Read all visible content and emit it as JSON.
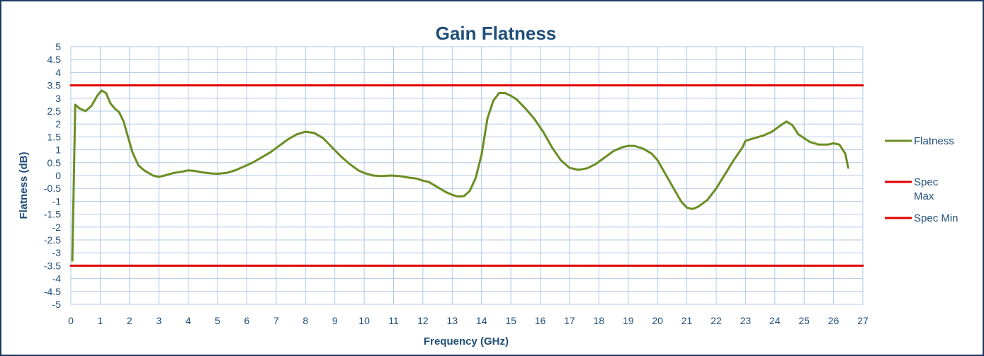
{
  "chart_data": {
    "type": "line",
    "title": "Gain Flatness",
    "xlabel": "Frequency (GHz)",
    "ylabel": "Flatness (dB)",
    "xlim": [
      0,
      27
    ],
    "ylim": [
      -5,
      5
    ],
    "x_ticks": [
      "0",
      "1",
      "2",
      "3",
      "4",
      "5",
      "6",
      "7",
      "8",
      "9",
      "10",
      "11",
      "12",
      "13",
      "14",
      "15",
      "16",
      "17",
      "18",
      "19",
      "20",
      "21",
      "22",
      "23",
      "24",
      "25",
      "26",
      "27"
    ],
    "y_ticks": [
      "5",
      "4.5",
      "4",
      "3.5",
      "3",
      "2.5",
      "2",
      "1.5",
      "1",
      "0.5",
      "0",
      "-0.5",
      "-1",
      "-1.5",
      "-2",
      "-2.5",
      "-3",
      "-3.5",
      "-4",
      "-4.5",
      "-5"
    ],
    "grid": true,
    "legend_position": "right",
    "series": [
      {
        "name": "Flatness",
        "color": "#6b8e23",
        "x": [
          0.05,
          0.15,
          0.3,
          0.5,
          0.7,
          0.9,
          1.05,
          1.2,
          1.35,
          1.5,
          1.65,
          1.8,
          1.95,
          2.1,
          2.3,
          2.5,
          2.8,
          3.0,
          3.2,
          3.5,
          3.8,
          4.0,
          4.2,
          4.5,
          4.8,
          5.0,
          5.3,
          5.6,
          5.9,
          6.2,
          6.5,
          6.8,
          7.1,
          7.4,
          7.7,
          8.0,
          8.3,
          8.6,
          8.9,
          9.2,
          9.5,
          9.8,
          10.0,
          10.3,
          10.6,
          10.9,
          11.2,
          11.5,
          11.8,
          12.0,
          12.2,
          12.5,
          12.8,
          13.0,
          13.2,
          13.4,
          13.6,
          13.8,
          14.0,
          14.2,
          14.4,
          14.6,
          14.8,
          15.0,
          15.2,
          15.5,
          15.8,
          16.1,
          16.4,
          16.7,
          17.0,
          17.3,
          17.6,
          17.9,
          18.2,
          18.5,
          18.8,
          19.0,
          19.2,
          19.5,
          19.8,
          20.0,
          20.2,
          20.5,
          20.8,
          21.0,
          21.2,
          21.4,
          21.7,
          22.0,
          22.3,
          22.6,
          22.9,
          23.0,
          23.3,
          23.6,
          23.9,
          24.2,
          24.4,
          24.6,
          24.8,
          25.0,
          25.2,
          25.5,
          25.8,
          26.0,
          26.2,
          26.4,
          26.5
        ],
        "values": [
          -3.3,
          2.75,
          2.6,
          2.5,
          2.7,
          3.1,
          3.3,
          3.2,
          2.8,
          2.6,
          2.45,
          2.1,
          1.5,
          0.9,
          0.4,
          0.2,
          0.0,
          -0.05,
          0.0,
          0.1,
          0.15,
          0.2,
          0.18,
          0.12,
          0.08,
          0.07,
          0.1,
          0.2,
          0.35,
          0.5,
          0.7,
          0.9,
          1.15,
          1.4,
          1.6,
          1.7,
          1.65,
          1.45,
          1.1,
          0.75,
          0.45,
          0.2,
          0.1,
          0.0,
          -0.02,
          0.0,
          -0.02,
          -0.08,
          -0.12,
          -0.2,
          -0.25,
          -0.45,
          -0.65,
          -0.75,
          -0.82,
          -0.8,
          -0.6,
          -0.1,
          0.8,
          2.2,
          2.9,
          3.2,
          3.2,
          3.1,
          2.95,
          2.6,
          2.2,
          1.7,
          1.1,
          0.6,
          0.3,
          0.22,
          0.28,
          0.45,
          0.7,
          0.95,
          1.1,
          1.15,
          1.15,
          1.05,
          0.85,
          0.6,
          0.2,
          -0.4,
          -1.0,
          -1.25,
          -1.3,
          -1.2,
          -0.95,
          -0.5,
          0.05,
          0.6,
          1.1,
          1.35,
          1.45,
          1.55,
          1.7,
          1.95,
          2.1,
          1.95,
          1.6,
          1.45,
          1.3,
          1.2,
          1.2,
          1.25,
          1.2,
          0.85,
          0.3
        ]
      },
      {
        "name": "Spec Max",
        "color": "#e00000",
        "x": [
          0,
          27
        ],
        "values": [
          3.5,
          3.5
        ]
      },
      {
        "name": "Spec Min",
        "color": "#e00000",
        "x": [
          0,
          27
        ],
        "values": [
          -3.5,
          -3.5
        ]
      }
    ]
  },
  "legend": {
    "items": [
      {
        "line1": "Flatness",
        "line2": "",
        "color": "#6b8e23"
      },
      {
        "line1": "Spec",
        "line2": "Max",
        "color": "#e00000"
      },
      {
        "line1": "Spec Min",
        "line2": "",
        "color": "#e00000"
      }
    ]
  },
  "colors": {
    "grid": "#b4c7e7",
    "axis_text": "#1f4e79",
    "border": "#1f3864"
  }
}
